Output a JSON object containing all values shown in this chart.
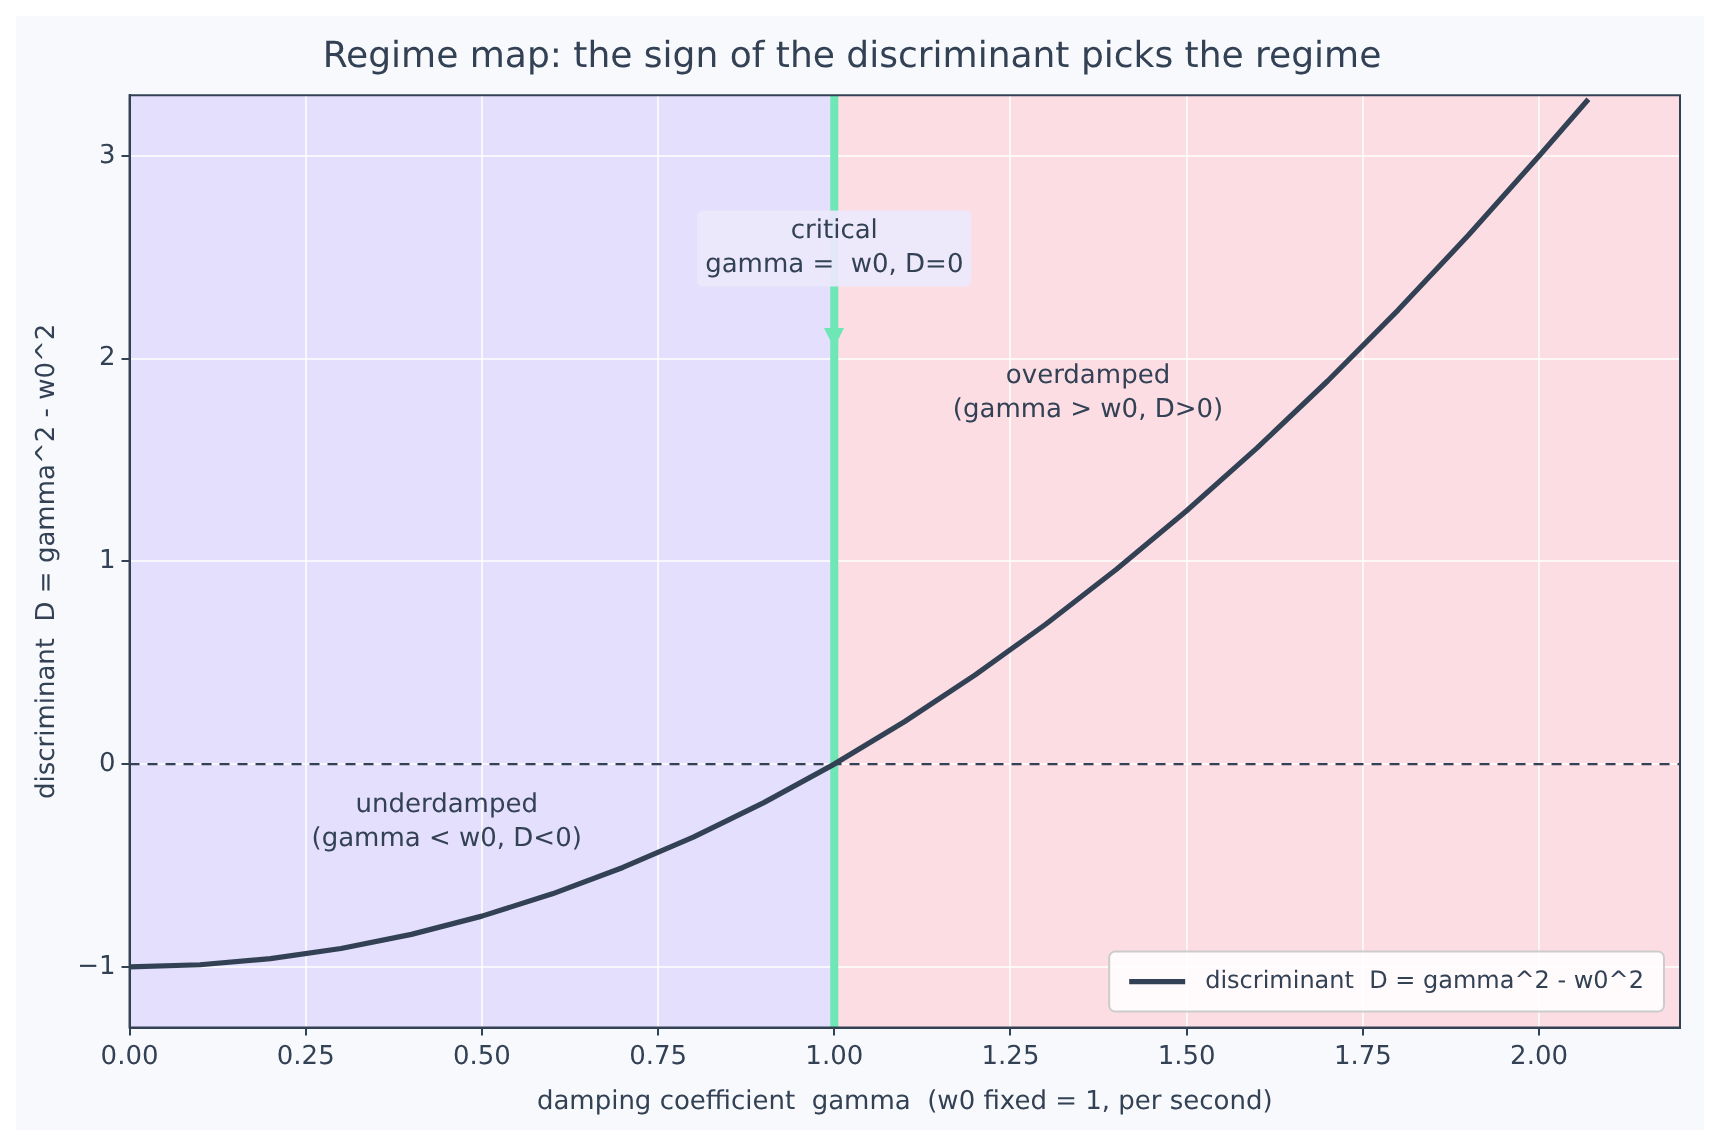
{
  "chart_data": {
    "type": "line",
    "title": "Regime map: the sign of the discriminant picks the regime",
    "xlabel": "damping coefficient  gamma  (w0 fixed = 1, per second)",
    "ylabel": "discriminant  D = gamma^2 - w0^2",
    "x": [
      0,
      0.1,
      0.2,
      0.3,
      0.4,
      0.5,
      0.6,
      0.7,
      0.8,
      0.9,
      1.0,
      1.1,
      1.2,
      1.3,
      1.4,
      1.5,
      1.6,
      1.7,
      1.8,
      1.9,
      2.0,
      2.07
    ],
    "series": [
      {
        "name": "discriminant  D = gamma^2 - w0^2",
        "color": "#334155",
        "values": [
          -1,
          -0.99,
          -0.96,
          -0.91,
          -0.84,
          -0.75,
          -0.64,
          -0.51,
          -0.36,
          -0.19,
          0,
          0.21,
          0.44,
          0.69,
          0.96,
          1.25,
          1.56,
          1.89,
          2.24,
          2.61,
          3.0,
          3.28
        ]
      }
    ],
    "xlim": [
      0,
      2.2
    ],
    "ylim": [
      -1.3,
      3.3
    ],
    "xticks": [
      {
        "value": 0,
        "label": "0.00"
      },
      {
        "value": 0.25,
        "label": "0.25"
      },
      {
        "value": 0.5,
        "label": "0.50"
      },
      {
        "value": 0.75,
        "label": "0.75"
      },
      {
        "value": 1,
        "label": "1.00"
      },
      {
        "value": 1.25,
        "label": "1.25"
      },
      {
        "value": 1.5,
        "label": "1.50"
      },
      {
        "value": 1.75,
        "label": "1.75"
      },
      {
        "value": 2,
        "label": "2.00"
      }
    ],
    "yticks": [
      {
        "value": -1,
        "label": "−1"
      },
      0,
      1,
      2,
      3
    ],
    "bands": [
      {
        "axis": "x",
        "from": 0,
        "to": 1,
        "color": "#e4dffc"
      },
      {
        "axis": "x",
        "from": 1,
        "to": 2.2,
        "color": "#fcdde4"
      }
    ],
    "ref_lines": [
      {
        "axis": "x",
        "value": 1,
        "color": "#6ee7b7",
        "line_style": "solid"
      },
      {
        "axis": "y",
        "value": 0,
        "color": "#334155",
        "line_style": "dashed"
      }
    ],
    "annotations": [
      {
        "text": "critical\ngamma =  w0, D=0",
        "x": 1,
        "y": 2.05
      },
      "underdamped\n(gamma < w0, D<0)",
      "overdamped\n(gamma > w0, D>0)"
    ],
    "grid": true,
    "legend": "bottom right",
    "marker": "none",
    "line_style": "solid"
  }
}
